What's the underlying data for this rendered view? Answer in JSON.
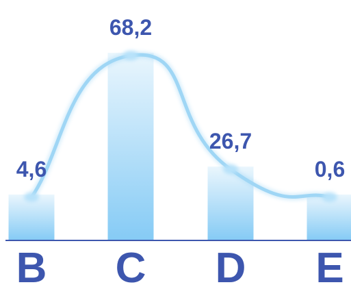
{
  "chart_data": {
    "type": "bar",
    "categories": [
      "B",
      "C",
      "D",
      "E"
    ],
    "values": [
      4.6,
      68.2,
      26.7,
      0.6
    ],
    "value_labels": [
      "4,6",
      "68,2",
      "26,7",
      "0,6"
    ],
    "overlay": "smooth-line",
    "title": "",
    "xlabel": "",
    "ylabel": "",
    "grid": false,
    "legend": "none"
  },
  "colors": {
    "bar_top": "#eaf6fd",
    "bar_bottom": "#86cbf5",
    "line": "#9fd6f5",
    "marker": "#b8e2fa",
    "label": "#3d56ae",
    "axis": "#3d56ae"
  }
}
